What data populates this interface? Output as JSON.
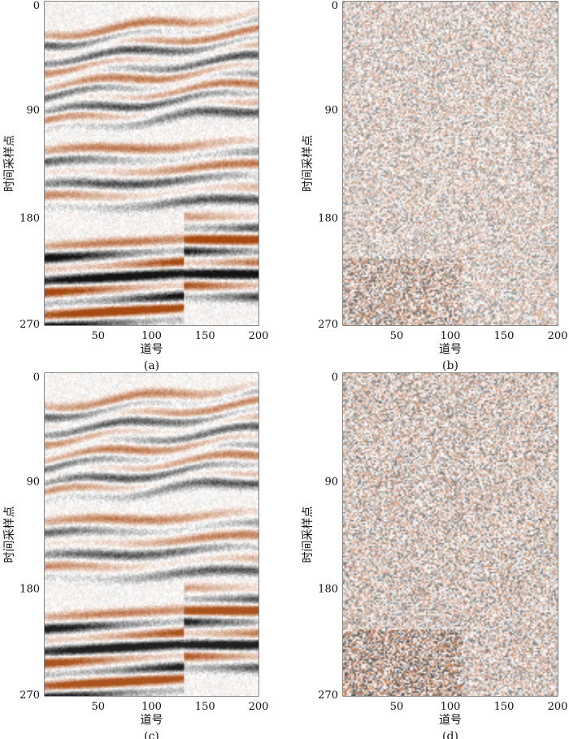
{
  "colors": {
    "positive": "#a64a12",
    "negative": "#141414",
    "axis": "#111111"
  },
  "chart_data": [
    {
      "id": "a",
      "type": "heatmap",
      "panel_label": "(a)",
      "xlabel": "道号",
      "ylabel": "时间采样点",
      "xlim": [
        0,
        200
      ],
      "ylim": [
        0,
        270
      ],
      "y_inverted": true,
      "x_ticks": [
        50,
        100,
        150,
        200
      ],
      "y_ticks": [
        0,
        90,
        180,
        270
      ],
      "content": "seismic section",
      "texture": "seismic",
      "strength": 1.0
    },
    {
      "id": "b",
      "type": "heatmap",
      "panel_label": "(b)",
      "xlabel": "道号",
      "ylabel": "时间采样点",
      "xlim": [
        0,
        200
      ],
      "ylim": [
        0,
        270
      ],
      "y_inverted": true,
      "x_ticks": [
        50,
        100,
        150,
        200
      ],
      "y_ticks": [
        0,
        90,
        180,
        270
      ],
      "content": "residual noise",
      "texture": "noise",
      "strength": 0.6
    },
    {
      "id": "c",
      "type": "heatmap",
      "panel_label": "(c)",
      "xlabel": "道号",
      "ylabel": "时间采样点",
      "xlim": [
        0,
        200
      ],
      "ylim": [
        0,
        270
      ],
      "y_inverted": true,
      "x_ticks": [
        50,
        100,
        150,
        200
      ],
      "y_ticks": [
        0,
        90,
        180,
        270
      ],
      "content": "seismic section",
      "texture": "seismic",
      "strength": 0.95
    },
    {
      "id": "d",
      "type": "heatmap",
      "panel_label": "(d)",
      "xlabel": "道号",
      "ylabel": "时间采样点",
      "xlim": [
        0,
        200
      ],
      "ylim": [
        0,
        270
      ],
      "y_inverted": true,
      "x_ticks": [
        50,
        100,
        150,
        200
      ],
      "y_ticks": [
        0,
        90,
        180,
        270
      ],
      "content": "residual noise",
      "texture": "noise",
      "strength": 0.7
    }
  ]
}
